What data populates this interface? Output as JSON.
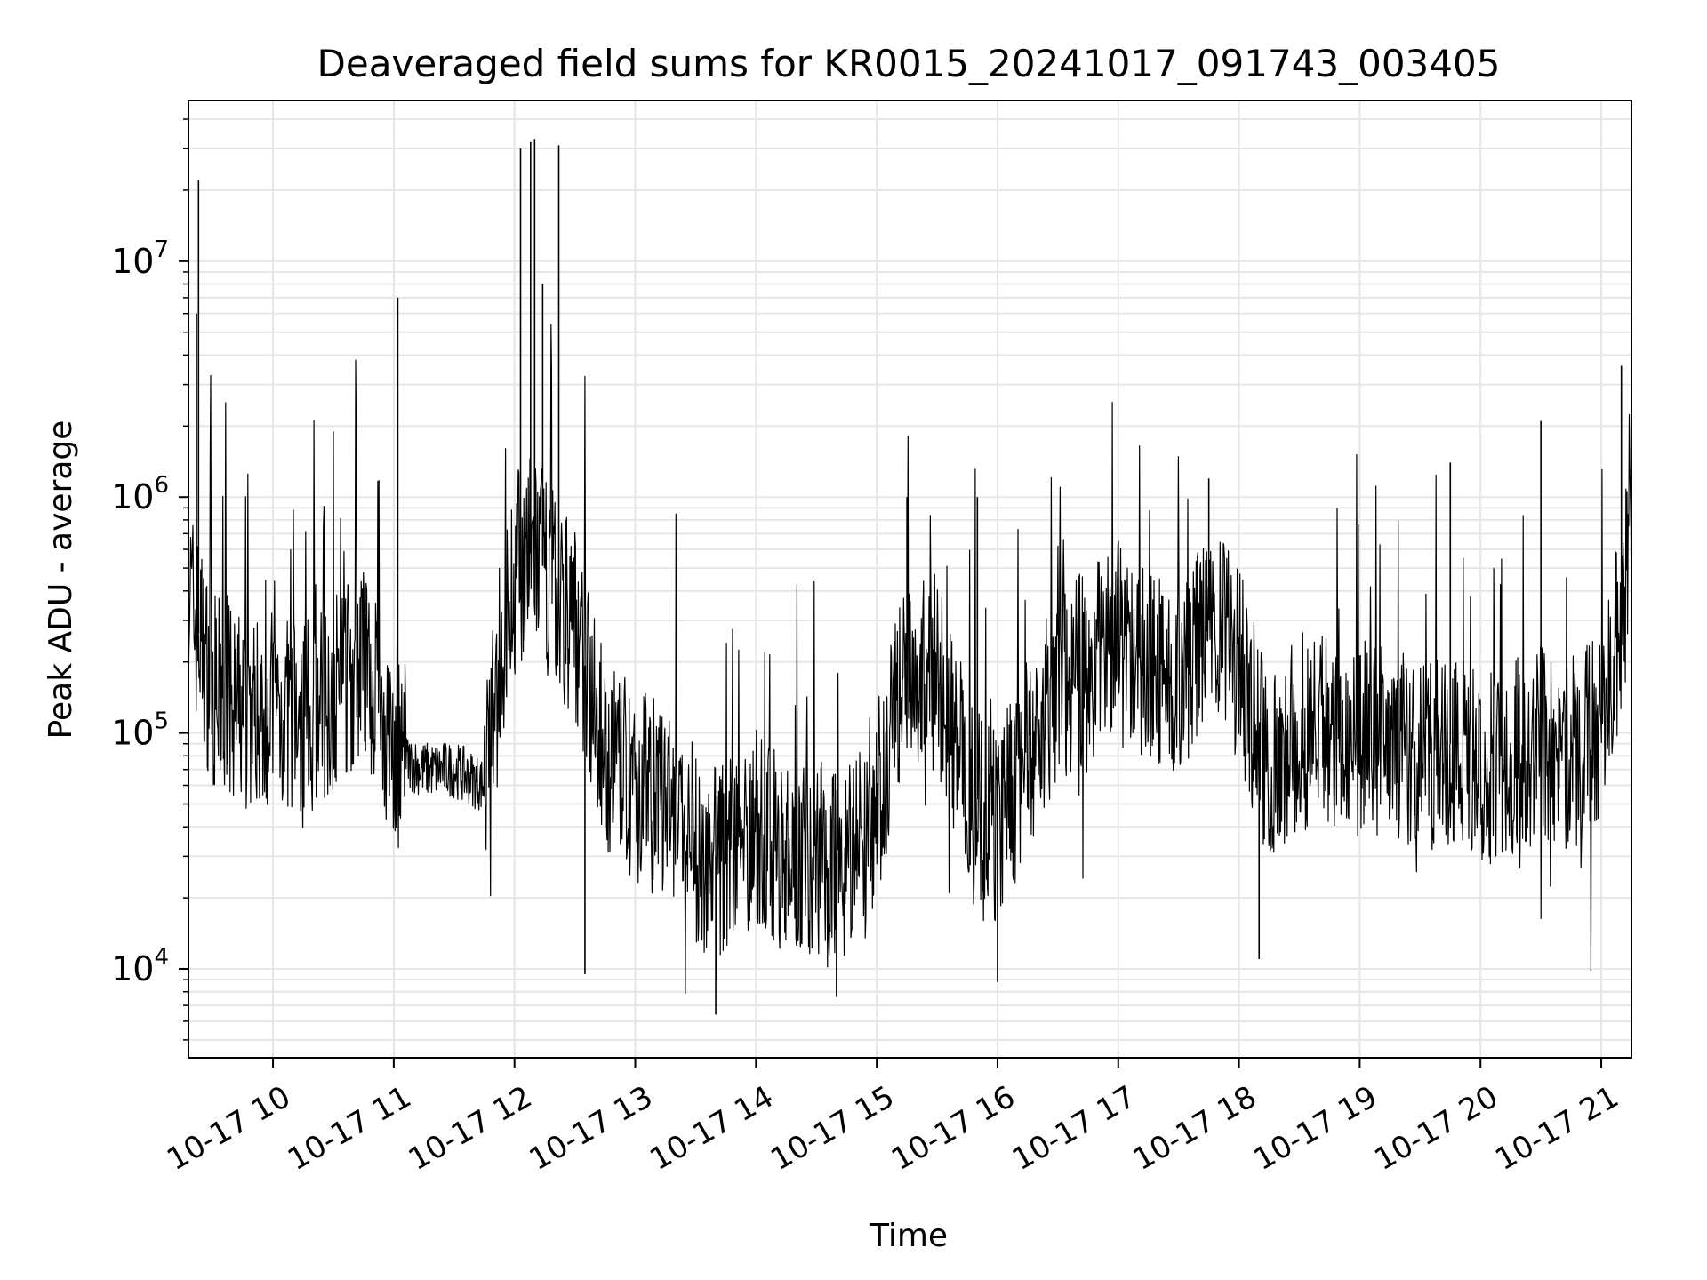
{
  "chart_data": {
    "type": "line",
    "title": "Deaveraged field sums for KR0015_20241017_091743_003405",
    "xlabel": "Time",
    "ylabel": "Peak ADU - average",
    "yscale": "log",
    "ylim": [
      4200,
      48000000
    ],
    "xlim": [
      "10-17 09:18",
      "10-17 21:15"
    ],
    "grid": true,
    "colors": {
      "line": "#000000",
      "grid": "#e6e6e6"
    },
    "x_ticks": [
      "10-17 10",
      "10-17 11",
      "10-17 12",
      "10-17 13",
      "10-17 14",
      "10-17 15",
      "10-17 16",
      "10-17 17",
      "10-17 18",
      "10-17 19",
      "10-17 20",
      "10-17 21"
    ],
    "x_tick_hours": [
      10,
      11,
      12,
      13,
      14,
      15,
      16,
      17,
      18,
      19,
      20,
      21
    ],
    "y_ticks": [
      {
        "base": "10",
        "exp": "4",
        "value": 10000
      },
      {
        "base": "10",
        "exp": "5",
        "value": 100000
      },
      {
        "base": "10",
        "exp": "6",
        "value": 1000000
      },
      {
        "base": "10",
        "exp": "7",
        "value": 10000000
      }
    ],
    "series": [
      {
        "x": [
          "10-17 09:18",
          "10-17 09:30",
          "10-17 09:45",
          "10-17 10:00",
          "10-17 10:15",
          "10-17 10:30",
          "10-17 10:45",
          "10-17 11:00",
          "10-17 11:15",
          "10-17 11:30",
          "10-17 11:45",
          "10-17 12:00",
          "10-17 12:10",
          "10-17 12:20",
          "10-17 12:30",
          "10-17 12:45",
          "10-17 13:00",
          "10-17 13:15",
          "10-17 13:30",
          "10-17 13:45",
          "10-17 14:00",
          "10-17 14:15",
          "10-17 14:30",
          "10-17 14:45",
          "10-17 15:00",
          "10-17 15:15",
          "10-17 15:30",
          "10-17 15:45",
          "10-17 16:00",
          "10-17 16:15",
          "10-17 16:30",
          "10-17 16:45",
          "10-17 17:00",
          "10-17 17:15",
          "10-17 17:30",
          "10-17 17:45",
          "10-17 18:00",
          "10-17 18:15",
          "10-17 18:30",
          "10-17 18:45",
          "10-17 19:00",
          "10-17 19:15",
          "10-17 19:30",
          "10-17 19:45",
          "10-17 20:00",
          "10-17 20:15",
          "10-17 20:30",
          "10-17 20:45",
          "10-17 21:00",
          "10-17 21:15"
        ],
        "y": [
          400000,
          150000,
          120000,
          130000,
          110000,
          150000,
          200000,
          80000,
          70000,
          70000,
          60000,
          500000,
          600000,
          400000,
          300000,
          80000,
          60000,
          50000,
          30000,
          30000,
          40000,
          30000,
          30000,
          30000,
          50000,
          200000,
          180000,
          60000,
          40000,
          80000,
          150000,
          200000,
          250000,
          200000,
          150000,
          300000,
          200000,
          70000,
          100000,
          110000,
          90000,
          100000,
          80000,
          90000,
          70000,
          80000,
          90000,
          80000,
          100000,
          600000
        ]
      }
    ],
    "spikes": [
      {
        "x": "10-17 09:23",
        "y": 22000000
      },
      {
        "x": "10-17 09:22",
        "y": 6000000
      },
      {
        "x": "10-17 11:02",
        "y": 7000000
      },
      {
        "x": "10-17 12:03",
        "y": 30000000
      },
      {
        "x": "10-17 12:08",
        "y": 32000000
      },
      {
        "x": "10-17 12:10",
        "y": 33000000
      },
      {
        "x": "10-17 12:14",
        "y": 8000000
      },
      {
        "x": "10-17 12:22",
        "y": 31000000
      },
      {
        "x": "10-17 15:15",
        "y": 1000000
      },
      {
        "x": "10-17 15:50",
        "y": 1000000
      },
      {
        "x": "10-17 17:45",
        "y": 1200000
      },
      {
        "x": "10-17 19:45",
        "y": 1400000
      },
      {
        "x": "10-17 20:30",
        "y": 2100000
      },
      {
        "x": "10-17 21:10",
        "y": 3600000
      }
    ],
    "dips": [
      {
        "x": "10-17 13:40",
        "y": 6400
      },
      {
        "x": "10-17 14:40",
        "y": 7600
      },
      {
        "x": "10-17 16:00",
        "y": 8800
      },
      {
        "x": "10-17 12:35",
        "y": 9500
      },
      {
        "x": "10-17 18:10",
        "y": 11000
      }
    ]
  }
}
